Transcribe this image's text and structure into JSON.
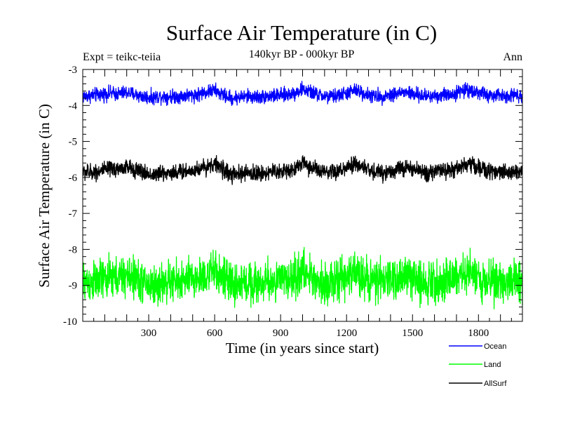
{
  "chart_data": {
    "type": "line",
    "title": "Surface Air Temperature (in C)",
    "subtitle": "140kyr BP - 000kyr BP",
    "annotation_left": "Expt = teikc-teiia",
    "annotation_right": "Ann",
    "xlabel": "Time (in years since start)",
    "ylabel": "Surface Air Temperature (in C)",
    "xlim": [
      0,
      2000
    ],
    "ylim": [
      -10,
      -3
    ],
    "x_ticks": [
      300,
      600,
      900,
      1200,
      1500,
      1800
    ],
    "x_tick_labels": [
      "300",
      "600",
      "900",
      "1200",
      "1500",
      "1800"
    ],
    "y_ticks": [
      -10,
      -9,
      -8,
      -7,
      -6,
      -5,
      -4,
      -3
    ],
    "y_tick_labels": [
      "-10",
      "-9",
      "-8",
      "-7",
      "-6",
      "-5",
      "-4",
      "-3"
    ],
    "legend_position": "bottom-right, outside plot",
    "series": [
      {
        "name": "Ocean",
        "color": "#0000ff",
        "mean": -3.7,
        "amplitude": 0.12,
        "x": [
          0,
          40,
          80,
          120,
          160,
          200,
          240,
          280,
          320,
          360,
          400,
          440,
          480,
          520,
          560,
          600,
          640,
          680,
          720,
          760,
          800,
          840,
          880,
          920,
          960,
          1000,
          1040,
          1080,
          1120,
          1160,
          1200,
          1240,
          1280,
          1320,
          1360,
          1400,
          1440,
          1480,
          1520,
          1560,
          1600,
          1640,
          1680,
          1720,
          1760,
          1800,
          1840,
          1880,
          1920,
          1960,
          2000
        ],
        "values": [
          -3.75,
          -3.72,
          -3.7,
          -3.66,
          -3.68,
          -3.64,
          -3.7,
          -3.76,
          -3.78,
          -3.74,
          -3.75,
          -3.74,
          -3.72,
          -3.7,
          -3.63,
          -3.58,
          -3.72,
          -3.8,
          -3.76,
          -3.75,
          -3.77,
          -3.74,
          -3.73,
          -3.71,
          -3.66,
          -3.55,
          -3.64,
          -3.72,
          -3.77,
          -3.72,
          -3.66,
          -3.58,
          -3.66,
          -3.74,
          -3.75,
          -3.7,
          -3.65,
          -3.64,
          -3.72,
          -3.74,
          -3.73,
          -3.71,
          -3.69,
          -3.6,
          -3.56,
          -3.64,
          -3.72,
          -3.74,
          -3.72,
          -3.7,
          -3.72
        ]
      },
      {
        "name": "Land",
        "color": "#00ff00",
        "mean": -8.85,
        "amplitude": 0.35,
        "x": [
          0,
          40,
          80,
          120,
          160,
          200,
          240,
          280,
          320,
          360,
          400,
          440,
          480,
          520,
          560,
          600,
          640,
          680,
          720,
          760,
          800,
          840,
          880,
          920,
          960,
          1000,
          1040,
          1080,
          1120,
          1160,
          1200,
          1240,
          1280,
          1320,
          1360,
          1400,
          1440,
          1480,
          1520,
          1560,
          1600,
          1640,
          1680,
          1720,
          1760,
          1800,
          1840,
          1880,
          1920,
          1960,
          2000
        ],
        "values": [
          -8.9,
          -8.92,
          -8.85,
          -8.82,
          -8.78,
          -8.75,
          -8.8,
          -8.92,
          -9.02,
          -8.95,
          -8.9,
          -8.88,
          -8.85,
          -8.8,
          -8.72,
          -8.62,
          -8.78,
          -9.0,
          -8.95,
          -8.92,
          -8.95,
          -8.9,
          -8.88,
          -8.85,
          -8.8,
          -8.62,
          -8.76,
          -8.88,
          -8.95,
          -8.88,
          -8.78,
          -8.65,
          -8.75,
          -8.88,
          -8.9,
          -8.85,
          -8.78,
          -8.76,
          -8.85,
          -8.9,
          -8.88,
          -8.85,
          -8.82,
          -8.72,
          -8.65,
          -8.76,
          -8.86,
          -8.9,
          -8.88,
          -8.85,
          -8.88
        ]
      },
      {
        "name": "AllSurf",
        "color": "#000000",
        "mean": -5.8,
        "amplitude": 0.14,
        "x": [
          0,
          40,
          80,
          120,
          160,
          200,
          240,
          280,
          320,
          360,
          400,
          440,
          480,
          520,
          560,
          600,
          640,
          680,
          720,
          760,
          800,
          840,
          880,
          920,
          960,
          1000,
          1040,
          1080,
          1120,
          1160,
          1200,
          1240,
          1280,
          1320,
          1360,
          1400,
          1440,
          1480,
          1520,
          1560,
          1600,
          1640,
          1680,
          1720,
          1760,
          1800,
          1840,
          1880,
          1920,
          1960,
          2000
        ],
        "values": [
          -5.85,
          -5.86,
          -5.82,
          -5.78,
          -5.76,
          -5.72,
          -5.78,
          -5.88,
          -5.93,
          -5.88,
          -5.86,
          -5.85,
          -5.82,
          -5.78,
          -5.7,
          -5.62,
          -5.78,
          -5.95,
          -5.9,
          -5.88,
          -5.9,
          -5.86,
          -5.84,
          -5.82,
          -5.76,
          -5.6,
          -5.72,
          -5.84,
          -5.9,
          -5.84,
          -5.75,
          -5.64,
          -5.72,
          -5.85,
          -5.86,
          -5.82,
          -5.76,
          -5.74,
          -5.82,
          -5.86,
          -5.84,
          -5.82,
          -5.79,
          -5.7,
          -5.62,
          -5.72,
          -5.82,
          -5.86,
          -5.84,
          -5.82,
          -5.84
        ]
      }
    ]
  }
}
